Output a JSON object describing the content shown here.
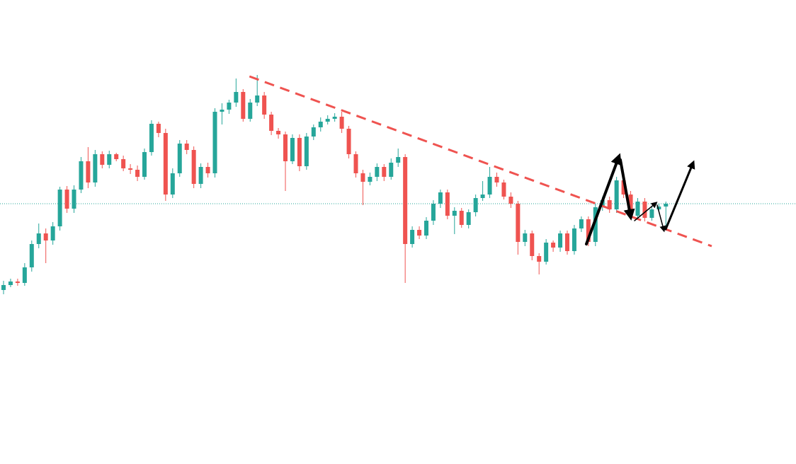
{
  "chart_data": {
    "type": "candlestick",
    "ylim": [
      0,
      656
    ],
    "up_color": "#26a69a",
    "down_color": "#ef5350",
    "reference_line": {
      "value": 368,
      "color": "#26a69a"
    },
    "trendline": {
      "start": [
        34.9,
        548
      ],
      "end": [
        100.5,
        308
      ],
      "color": "#ef5350"
    },
    "ohlc": [
      [
        246,
        259,
        240,
        253
      ],
      [
        253,
        262,
        250,
        258
      ],
      [
        258,
        262,
        252,
        256
      ],
      [
        256,
        284,
        252,
        278
      ],
      [
        278,
        316,
        272,
        311
      ],
      [
        311,
        340,
        305,
        326
      ],
      [
        326,
        333,
        284,
        316
      ],
      [
        316,
        342,
        310,
        336
      ],
      [
        336,
        392,
        330,
        388
      ],
      [
        388,
        393,
        355,
        361
      ],
      [
        361,
        394,
        355,
        388
      ],
      [
        388,
        434,
        383,
        428
      ],
      [
        428,
        448,
        390,
        398
      ],
      [
        398,
        444,
        392,
        438
      ],
      [
        438,
        442,
        418,
        423
      ],
      [
        423,
        443,
        418,
        438
      ],
      [
        438,
        440,
        428,
        431
      ],
      [
        431,
        436,
        414,
        418
      ],
      [
        418,
        424,
        410,
        416
      ],
      [
        416,
        422,
        400,
        406
      ],
      [
        406,
        446,
        402,
        441
      ],
      [
        441,
        486,
        436,
        481
      ],
      [
        481,
        484,
        462,
        468
      ],
      [
        468,
        474,
        372,
        381
      ],
      [
        381,
        418,
        376,
        411
      ],
      [
        411,
        458,
        406,
        453
      ],
      [
        453,
        458,
        438,
        444
      ],
      [
        444,
        449,
        390,
        396
      ],
      [
        396,
        425,
        390,
        420
      ],
      [
        420,
        426,
        405,
        411
      ],
      [
        411,
        503,
        405,
        498
      ],
      [
        498,
        510,
        480,
        501
      ],
      [
        501,
        515,
        495,
        511
      ],
      [
        511,
        545,
        505,
        526
      ],
      [
        526,
        530,
        484,
        488
      ],
      [
        488,
        516,
        484,
        511
      ],
      [
        511,
        550,
        506,
        521
      ],
      [
        521,
        526,
        488,
        494
      ],
      [
        494,
        498,
        465,
        471
      ],
      [
        471,
        475,
        460,
        466
      ],
      [
        466,
        470,
        386,
        428
      ],
      [
        428,
        466,
        424,
        461
      ],
      [
        461,
        466,
        414,
        421
      ],
      [
        421,
        468,
        416,
        463
      ],
      [
        463,
        480,
        458,
        476
      ],
      [
        476,
        490,
        470,
        484
      ],
      [
        484,
        493,
        480,
        488
      ],
      [
        488,
        496,
        484,
        491
      ],
      [
        491,
        498,
        468,
        474
      ],
      [
        474,
        478,
        432,
        438
      ],
      [
        438,
        442,
        405,
        411
      ],
      [
        411,
        416,
        366,
        399
      ],
      [
        399,
        412,
        394,
        406
      ],
      [
        406,
        425,
        400,
        420
      ],
      [
        420,
        424,
        400,
        406
      ],
      [
        406,
        432,
        402,
        426
      ],
      [
        426,
        446,
        420,
        434
      ],
      [
        434,
        438,
        256,
        311
      ],
      [
        311,
        336,
        306,
        331
      ],
      [
        331,
        336,
        318,
        323
      ],
      [
        323,
        349,
        318,
        344
      ],
      [
        344,
        373,
        338,
        368
      ],
      [
        368,
        388,
        362,
        384
      ],
      [
        384,
        388,
        346,
        351
      ],
      [
        351,
        363,
        325,
        358
      ],
      [
        358,
        362,
        334,
        338
      ],
      [
        338,
        360,
        333,
        356
      ],
      [
        356,
        381,
        350,
        376
      ],
      [
        376,
        400,
        372,
        381
      ],
      [
        381,
        420,
        376,
        406
      ],
      [
        406,
        412,
        392,
        398
      ],
      [
        398,
        402,
        374,
        378
      ],
      [
        378,
        384,
        362,
        368
      ],
      [
        368,
        372,
        296,
        314
      ],
      [
        314,
        331,
        308,
        326
      ],
      [
        326,
        330,
        288,
        294
      ],
      [
        294,
        298,
        268,
        286
      ],
      [
        286,
        318,
        282,
        313
      ],
      [
        313,
        316,
        300,
        306
      ],
      [
        306,
        330,
        300,
        326
      ],
      [
        326,
        330,
        296,
        301
      ],
      [
        301,
        338,
        296,
        333
      ],
      [
        333,
        350,
        328,
        346
      ],
      [
        346,
        350,
        308,
        314
      ],
      [
        314,
        368,
        308,
        363
      ],
      [
        363,
        378,
        358,
        373
      ],
      [
        373,
        378,
        355,
        360
      ],
      [
        360,
        406,
        355,
        401
      ],
      [
        401,
        405,
        376,
        381
      ],
      [
        381,
        386,
        346,
        351
      ],
      [
        351,
        376,
        346,
        371
      ],
      [
        371,
        376,
        343,
        348
      ],
      [
        348,
        365,
        344,
        360
      ],
      [
        360,
        368,
        356,
        364
      ],
      [
        364,
        371,
        332,
        368
      ]
    ]
  }
}
